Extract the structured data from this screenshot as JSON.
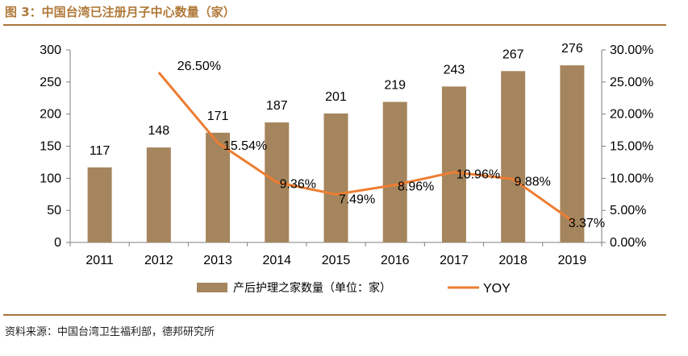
{
  "figure": {
    "title": "图 3：中国台湾已注册月子中心数量（家）",
    "source": "资料来源：中国台湾卫生福利部，德邦研究所"
  },
  "chart_data": {
    "type": "bar",
    "categories": [
      "2011",
      "2012",
      "2013",
      "2014",
      "2015",
      "2016",
      "2017",
      "2018",
      "2019"
    ],
    "series": [
      {
        "name": "产后护理之家数量（单位：家）",
        "type": "bar",
        "axis": "left",
        "color": "#a5855d",
        "values": [
          117,
          148,
          171,
          187,
          201,
          219,
          243,
          267,
          276
        ],
        "labels": [
          "117",
          "148",
          "171",
          "187",
          "201",
          "219",
          "243",
          "267",
          "276"
        ]
      },
      {
        "name": "YOY",
        "type": "line",
        "axis": "right",
        "color": "#ed7d31",
        "values": [
          null,
          26.5,
          15.54,
          9.36,
          7.49,
          8.96,
          10.96,
          9.88,
          3.37
        ],
        "labels": [
          "",
          "26.50%",
          "15.54%",
          "9.36%",
          "7.49%",
          "8.96%",
          "10.96%",
          "9.88%",
          "3.37%"
        ]
      }
    ],
    "y_left": {
      "range": [
        0,
        300
      ],
      "ticks": [
        0,
        50,
        100,
        150,
        200,
        250,
        300
      ],
      "tick_labels": [
        "0",
        "50",
        "100",
        "150",
        "200",
        "250",
        "300"
      ]
    },
    "y_right": {
      "range": [
        0,
        30
      ],
      "ticks": [
        0,
        5,
        10,
        15,
        20,
        25,
        30
      ],
      "tick_labels": [
        "0.00%",
        "5.00%",
        "10.00%",
        "15.00%",
        "20.00%",
        "25.00%",
        "30.00%"
      ]
    },
    "grid": false,
    "legend_position": "bottom"
  }
}
